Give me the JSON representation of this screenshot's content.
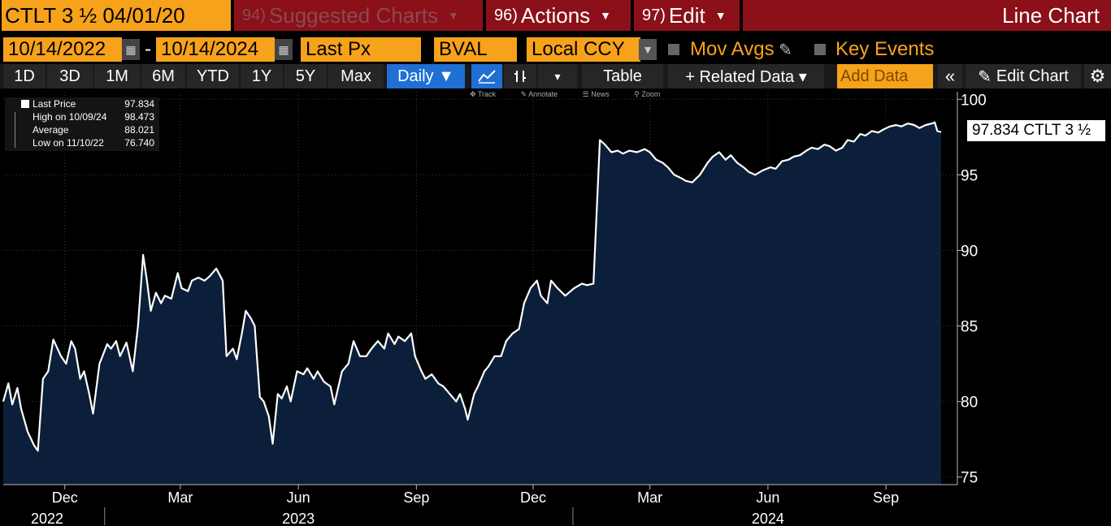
{
  "toolbar": {
    "security": "CTLT 3 ½ 04/01/20",
    "suggested_num": "94)",
    "suggested_label": "Suggested Charts",
    "actions_num": "96)",
    "actions_label": "Actions",
    "edit_num": "97)",
    "edit_label": "Edit",
    "view_title": "Line Chart"
  },
  "controls": {
    "start_date": "10/14/2022",
    "dash": "-",
    "end_date": "10/14/2024",
    "field": "Last Px",
    "source": "BVAL",
    "currency": "Local CCY",
    "mov_avgs": "Mov Avgs",
    "key_events": "Key Events"
  },
  "ranges": [
    "1D",
    "3D",
    "1M",
    "6M",
    "YTD",
    "1Y",
    "5Y",
    "Max"
  ],
  "range_tools": {
    "frequency": "Daily ▼",
    "table": "Table",
    "related": "+ Related Data ▾",
    "add_data": "Add Data",
    "edit_chart": "Edit Chart"
  },
  "subtools": [
    "Track",
    "Annotate",
    "News",
    "Zoom"
  ],
  "legend": {
    "last_label": "Last Price",
    "last_val": "97.834",
    "high_label": "High on 10/09/24",
    "high_val": "98.473",
    "avg_label": "Average",
    "avg_val": "88.021",
    "low_label": "Low on 11/10/22",
    "low_val": "76.740"
  },
  "last_tag": "97.834 CTLT 3 ½",
  "colors": {
    "accent": "#f7a21b",
    "header": "#8b1019",
    "fill": "#0b1f3a",
    "line": "#ffffff",
    "selected": "#1f6fd4"
  },
  "chart_data": {
    "type": "area",
    "title": "",
    "xlabel": "",
    "ylabel": "",
    "ylim": [
      74.5,
      100.5
    ],
    "yticks": [
      75,
      80,
      85,
      90,
      95,
      100
    ],
    "xlim": [
      "2022-10-14",
      "2024-10-14"
    ],
    "xticks": [
      {
        "date": "2022-12-01",
        "label": "Dec"
      },
      {
        "date": "2023-03-01",
        "label": "Mar"
      },
      {
        "date": "2023-06-01",
        "label": "Jun"
      },
      {
        "date": "2023-09-01",
        "label": "Sep"
      },
      {
        "date": "2023-12-01",
        "label": "Dec"
      },
      {
        "date": "2024-03-01",
        "label": "Mar"
      },
      {
        "date": "2024-06-01",
        "label": "Jun"
      },
      {
        "date": "2024-09-01",
        "label": "Sep"
      }
    ],
    "years": [
      {
        "date": "2022-10-14",
        "label": "2022"
      },
      {
        "date": "2023-06-01",
        "label": "2023"
      },
      {
        "date": "2024-06-01",
        "label": "2024"
      }
    ],
    "series": [
      {
        "name": "Last Price",
        "points": [
          [
            "2022-10-14",
            80.0
          ],
          [
            "2022-10-18",
            81.2
          ],
          [
            "2022-10-21",
            79.8
          ],
          [
            "2022-10-25",
            80.9
          ],
          [
            "2022-10-28",
            79.5
          ],
          [
            "2022-11-02",
            78.0
          ],
          [
            "2022-11-07",
            77.1
          ],
          [
            "2022-11-10",
            76.74
          ],
          [
            "2022-11-14",
            81.5
          ],
          [
            "2022-11-18",
            82.0
          ],
          [
            "2022-11-22",
            84.1
          ],
          [
            "2022-11-28",
            83.0
          ],
          [
            "2022-12-02",
            82.5
          ],
          [
            "2022-12-06",
            84.0
          ],
          [
            "2022-12-09",
            83.5
          ],
          [
            "2022-12-13",
            81.5
          ],
          [
            "2022-12-16",
            82.0
          ],
          [
            "2022-12-20",
            80.5
          ],
          [
            "2022-12-23",
            79.2
          ],
          [
            "2022-12-28",
            82.5
          ],
          [
            "2023-01-03",
            83.8
          ],
          [
            "2023-01-06",
            83.5
          ],
          [
            "2023-01-10",
            84.0
          ],
          [
            "2023-01-13",
            83.0
          ],
          [
            "2023-01-18",
            83.9
          ],
          [
            "2023-01-23",
            82.0
          ],
          [
            "2023-01-27",
            85.0
          ],
          [
            "2023-01-31",
            89.7
          ],
          [
            "2023-02-03",
            88.0
          ],
          [
            "2023-02-06",
            86.0
          ],
          [
            "2023-02-10",
            87.2
          ],
          [
            "2023-02-14",
            86.5
          ],
          [
            "2023-02-17",
            87.0
          ],
          [
            "2023-02-22",
            86.8
          ],
          [
            "2023-02-27",
            88.5
          ],
          [
            "2023-03-02",
            87.5
          ],
          [
            "2023-03-07",
            87.3
          ],
          [
            "2023-03-10",
            88.0
          ],
          [
            "2023-03-15",
            88.2
          ],
          [
            "2023-03-20",
            88.0
          ],
          [
            "2023-03-24",
            88.3
          ],
          [
            "2023-03-29",
            88.8
          ],
          [
            "2023-04-03",
            88.0
          ],
          [
            "2023-04-06",
            83.0
          ],
          [
            "2023-04-11",
            83.5
          ],
          [
            "2023-04-14",
            82.8
          ],
          [
            "2023-04-18",
            84.5
          ],
          [
            "2023-04-21",
            86.0
          ],
          [
            "2023-04-25",
            85.5
          ],
          [
            "2023-04-28",
            85.0
          ],
          [
            "2023-05-02",
            80.3
          ],
          [
            "2023-05-05",
            80.0
          ],
          [
            "2023-05-09",
            79.0
          ],
          [
            "2023-05-12",
            77.2
          ],
          [
            "2023-05-16",
            80.5
          ],
          [
            "2023-05-19",
            80.2
          ],
          [
            "2023-05-23",
            81.0
          ],
          [
            "2023-05-26",
            80.0
          ],
          [
            "2023-05-31",
            82.0
          ],
          [
            "2023-06-05",
            81.8
          ],
          [
            "2023-06-08",
            82.2
          ],
          [
            "2023-06-13",
            81.5
          ],
          [
            "2023-06-16",
            82.0
          ],
          [
            "2023-06-21",
            81.3
          ],
          [
            "2023-06-26",
            81.0
          ],
          [
            "2023-06-29",
            79.8
          ],
          [
            "2023-07-05",
            82.0
          ],
          [
            "2023-07-10",
            82.5
          ],
          [
            "2023-07-14",
            84.0
          ],
          [
            "2023-07-19",
            83.0
          ],
          [
            "2023-07-24",
            83.0
          ],
          [
            "2023-07-28",
            83.5
          ],
          [
            "2023-08-02",
            84.0
          ],
          [
            "2023-08-07",
            83.5
          ],
          [
            "2023-08-10",
            84.5
          ],
          [
            "2023-08-15",
            83.8
          ],
          [
            "2023-08-18",
            84.3
          ],
          [
            "2023-08-23",
            84.0
          ],
          [
            "2023-08-28",
            84.5
          ],
          [
            "2023-08-31",
            83.0
          ],
          [
            "2023-09-05",
            82.0
          ],
          [
            "2023-09-08",
            81.5
          ],
          [
            "2023-09-13",
            81.8
          ],
          [
            "2023-09-18",
            81.2
          ],
          [
            "2023-09-22",
            81.0
          ],
          [
            "2023-09-27",
            80.5
          ],
          [
            "2023-10-02",
            80.0
          ],
          [
            "2023-10-05",
            80.5
          ],
          [
            "2023-10-09",
            79.5
          ],
          [
            "2023-10-11",
            78.8
          ],
          [
            "2023-10-16",
            80.5
          ],
          [
            "2023-10-19",
            81.0
          ],
          [
            "2023-10-24",
            82.0
          ],
          [
            "2023-10-27",
            82.3
          ],
          [
            "2023-11-01",
            83.0
          ],
          [
            "2023-11-06",
            83.0
          ],
          [
            "2023-11-10",
            84.0
          ],
          [
            "2023-11-15",
            84.5
          ],
          [
            "2023-11-20",
            84.8
          ],
          [
            "2023-11-24",
            86.5
          ],
          [
            "2023-11-29",
            87.5
          ],
          [
            "2023-12-04",
            88.0
          ],
          [
            "2023-12-07",
            87.0
          ],
          [
            "2023-12-12",
            86.5
          ],
          [
            "2023-12-15",
            88.0
          ],
          [
            "2023-12-20",
            87.5
          ],
          [
            "2023-12-26",
            87.0
          ],
          [
            "2024-01-02",
            87.5
          ],
          [
            "2024-01-08",
            87.8
          ],
          [
            "2024-01-12",
            87.7
          ],
          [
            "2024-01-17",
            87.8
          ],
          [
            "2024-01-22",
            97.3
          ],
          [
            "2024-01-26",
            97.0
          ],
          [
            "2024-01-31",
            96.5
          ],
          [
            "2024-02-05",
            96.6
          ],
          [
            "2024-02-09",
            96.4
          ],
          [
            "2024-02-14",
            96.6
          ],
          [
            "2024-02-20",
            96.5
          ],
          [
            "2024-02-26",
            96.7
          ],
          [
            "2024-03-01",
            96.5
          ],
          [
            "2024-03-06",
            96.0
          ],
          [
            "2024-03-11",
            95.8
          ],
          [
            "2024-03-15",
            95.5
          ],
          [
            "2024-03-20",
            95.0
          ],
          [
            "2024-03-25",
            94.8
          ],
          [
            "2024-03-29",
            94.6
          ],
          [
            "2024-04-03",
            94.5
          ],
          [
            "2024-04-09",
            95.0
          ],
          [
            "2024-04-15",
            95.8
          ],
          [
            "2024-04-19",
            96.2
          ],
          [
            "2024-04-24",
            96.5
          ],
          [
            "2024-04-29",
            96.0
          ],
          [
            "2024-05-03",
            96.3
          ],
          [
            "2024-05-08",
            95.8
          ],
          [
            "2024-05-13",
            95.5
          ],
          [
            "2024-05-17",
            95.2
          ],
          [
            "2024-05-22",
            95.0
          ],
          [
            "2024-05-28",
            95.3
          ],
          [
            "2024-06-03",
            95.5
          ],
          [
            "2024-06-07",
            95.4
          ],
          [
            "2024-06-12",
            95.9
          ],
          [
            "2024-06-17",
            96.0
          ],
          [
            "2024-06-21",
            96.2
          ],
          [
            "2024-06-26",
            96.3
          ],
          [
            "2024-07-01",
            96.6
          ],
          [
            "2024-07-05",
            96.8
          ],
          [
            "2024-07-10",
            96.7
          ],
          [
            "2024-07-15",
            97.0
          ],
          [
            "2024-07-19",
            96.9
          ],
          [
            "2024-07-24",
            96.6
          ],
          [
            "2024-07-29",
            96.8
          ],
          [
            "2024-08-02",
            97.3
          ],
          [
            "2024-08-07",
            97.2
          ],
          [
            "2024-08-12",
            97.7
          ],
          [
            "2024-08-16",
            97.6
          ],
          [
            "2024-08-21",
            97.9
          ],
          [
            "2024-08-26",
            97.8
          ],
          [
            "2024-08-30",
            98.0
          ],
          [
            "2024-09-04",
            98.2
          ],
          [
            "2024-09-09",
            98.3
          ],
          [
            "2024-09-13",
            98.2
          ],
          [
            "2024-09-18",
            98.4
          ],
          [
            "2024-09-23",
            98.3
          ],
          [
            "2024-09-27",
            98.1
          ],
          [
            "2024-10-02",
            98.3
          ],
          [
            "2024-10-07",
            98.4
          ],
          [
            "2024-10-09",
            98.473
          ],
          [
            "2024-10-11",
            97.9
          ],
          [
            "2024-10-14",
            97.834
          ]
        ]
      }
    ]
  }
}
